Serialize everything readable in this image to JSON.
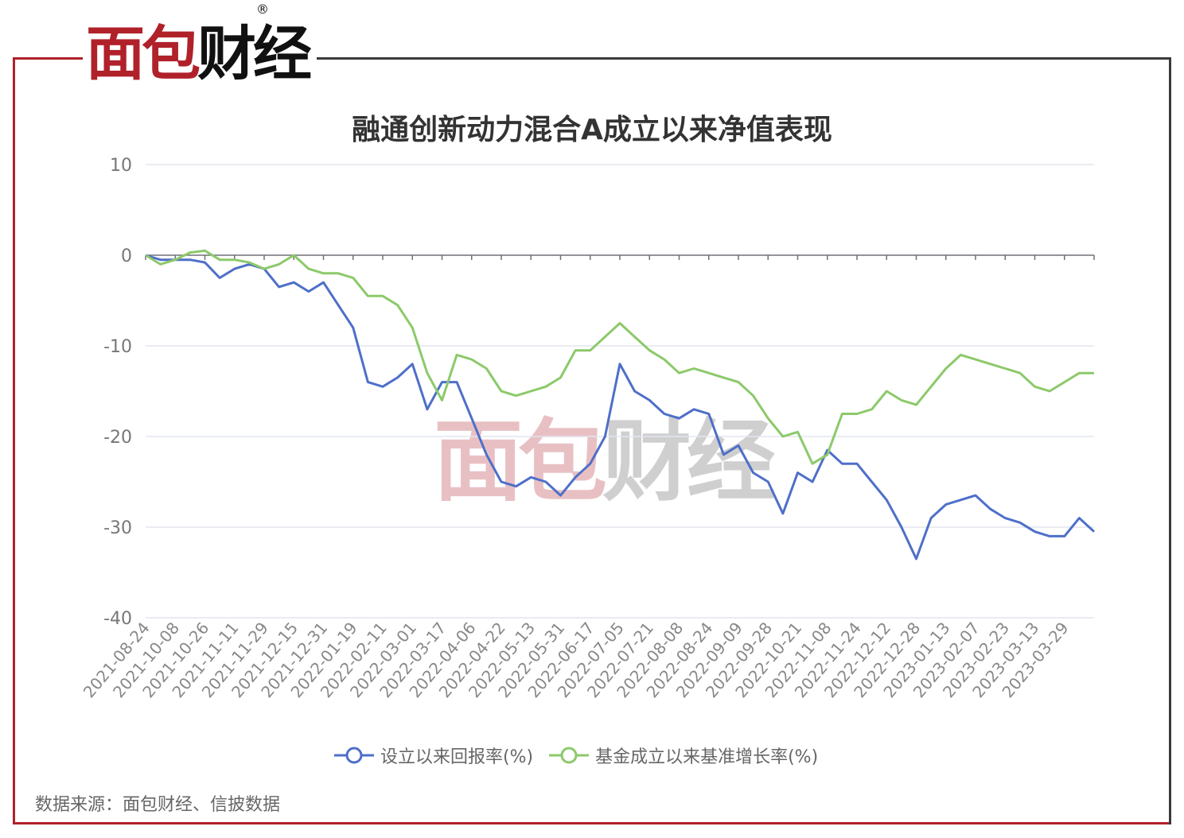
{
  "brand": {
    "logo_text": "面包财经",
    "registered_mark": "®",
    "red": "#b0212a"
  },
  "source": "数据来源：面包财经、信披数据",
  "chart_data": {
    "type": "line",
    "title": "融通创新动力混合A成立以来净值表现",
    "xlabel": "",
    "ylabel": "",
    "ylim": [
      -40,
      10
    ],
    "yticks": [
      "10",
      "0",
      "-10",
      "-20",
      "-30",
      "-40"
    ],
    "grid": true,
    "legend_position": "bottom",
    "tick_labels": [
      "2021-08-24",
      "2021-10-08",
      "2021-10-26",
      "2021-11-11",
      "2021-11-29",
      "2021-12-15",
      "2021-12-31",
      "2022-01-19",
      "2022-02-11",
      "2022-03-01",
      "2022-03-17",
      "2022-04-06",
      "2022-04-22",
      "2022-05-13",
      "2022-05-31",
      "2022-06-17",
      "2022-07-05",
      "2022-07-21",
      "2022-08-08",
      "2022-08-24",
      "2022-09-09",
      "2022-09-28",
      "2022-10-21",
      "2022-11-08",
      "2022-11-24",
      "2022-12-12",
      "2022-12-28",
      "2023-01-13",
      "2023-02-07",
      "2023-02-23",
      "2023-03-13",
      "2023-03-29"
    ],
    "x": [
      "2021-08-24",
      "2021-09-15",
      "2021-10-08",
      "2021-10-17",
      "2021-10-26",
      "2021-11-03",
      "2021-11-11",
      "2021-11-20",
      "2021-11-29",
      "2021-12-07",
      "2021-12-15",
      "2021-12-23",
      "2021-12-31",
      "2022-01-10",
      "2022-01-19",
      "2022-01-28",
      "2022-02-11",
      "2022-02-18",
      "2022-03-01",
      "2022-03-09",
      "2022-03-17",
      "2022-03-25",
      "2022-04-06",
      "2022-04-14",
      "2022-04-22",
      "2022-04-29",
      "2022-05-13",
      "2022-05-20",
      "2022-05-31",
      "2022-06-09",
      "2022-06-17",
      "2022-06-24",
      "2022-07-05",
      "2022-07-13",
      "2022-07-21",
      "2022-07-29",
      "2022-08-08",
      "2022-08-16",
      "2022-08-24",
      "2022-09-01",
      "2022-09-09",
      "2022-09-19",
      "2022-09-28",
      "2022-10-12",
      "2022-10-21",
      "2022-10-31",
      "2022-11-08",
      "2022-11-16",
      "2022-11-24",
      "2022-12-02",
      "2022-12-12",
      "2022-12-20",
      "2022-12-28",
      "2023-01-05",
      "2023-01-13",
      "2023-01-31",
      "2023-02-07",
      "2023-02-15",
      "2023-02-23",
      "2023-03-03",
      "2023-03-13",
      "2023-03-21",
      "2023-03-29",
      "2023-04-06",
      "2023-04-13"
    ],
    "series": [
      {
        "name": "设立以来回报率(%)",
        "color": "#4e6fc9",
        "values": [
          0,
          -0.5,
          -0.5,
          -0.5,
          -0.8,
          -2.5,
          -1.5,
          -1,
          -1.5,
          -3.5,
          -3,
          -4,
          -3,
          -5.5,
          -8,
          -14,
          -14.5,
          -13.5,
          -12,
          -17,
          -14,
          -14,
          -18,
          -22,
          -25,
          -25.5,
          -24.5,
          -25,
          -26.5,
          -24.5,
          -23,
          -20,
          -12,
          -15,
          -16,
          -17.5,
          -18,
          -17,
          -17.5,
          -22,
          -21,
          -24,
          -25,
          -28.5,
          -24,
          -25,
          -21.5,
          -23,
          -23,
          -25,
          -27,
          -30,
          -33.5,
          -29,
          -27.5,
          -27,
          -26.5,
          -28,
          -29,
          -29.5,
          -30.5,
          -31,
          -31,
          -29,
          -30.5
        ]
      },
      {
        "name": "基金成立以来基准增长率(%)",
        "color": "#8cc96a",
        "values": [
          0,
          -1,
          -0.5,
          0.3,
          0.5,
          -0.5,
          -0.5,
          -0.8,
          -1.5,
          -1,
          0,
          -1.5,
          -2,
          -2,
          -2.5,
          -4.5,
          -4.5,
          -5.5,
          -8,
          -13,
          -16,
          -11,
          -11.5,
          -12.5,
          -15,
          -15.5,
          -15,
          -14.5,
          -13.5,
          -10.5,
          -10.5,
          -9,
          -7.5,
          -9,
          -10.5,
          -11.5,
          -13,
          -12.5,
          -13,
          -13.5,
          -14,
          -15.5,
          -18,
          -20,
          -19.5,
          -23,
          -22,
          -17.5,
          -17.5,
          -17,
          -15,
          -16,
          -16.5,
          -14.5,
          -12.5,
          -11,
          -11.5,
          -12,
          -12.5,
          -13,
          -14.5,
          -15,
          -14,
          -13,
          -13
        ]
      }
    ]
  }
}
